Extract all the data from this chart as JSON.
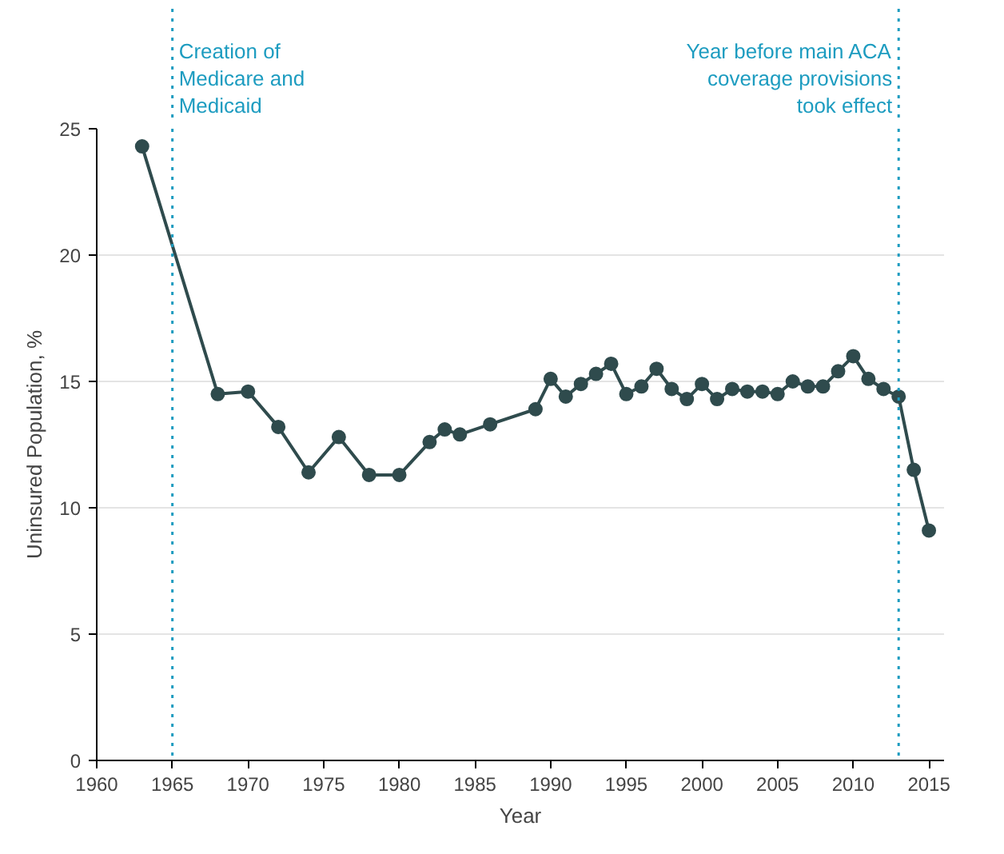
{
  "chart_data": {
    "type": "line",
    "xlabel": "Year",
    "ylabel": "Uninsured Population, %",
    "x": [
      1963,
      1968,
      1970,
      1972,
      1974,
      1976,
      1978,
      1980,
      1982,
      1983,
      1984,
      1986,
      1989,
      1990,
      1991,
      1992,
      1993,
      1994,
      1995,
      1996,
      1997,
      1998,
      1999,
      2000,
      2001,
      2002,
      2003,
      2004,
      2005,
      2006,
      2007,
      2008,
      2009,
      2010,
      2011,
      2012,
      2013,
      2014,
      2015
    ],
    "series": [
      {
        "color": "#2f4b4d",
        "values": [
          24.3,
          14.5,
          14.6,
          13.2,
          11.4,
          12.8,
          11.3,
          11.3,
          12.6,
          13.1,
          12.9,
          13.3,
          13.9,
          15.1,
          14.4,
          14.9,
          15.3,
          15.7,
          14.5,
          14.8,
          15.5,
          14.7,
          14.3,
          14.9,
          14.3,
          14.7,
          14.6,
          14.6,
          14.5,
          15.0,
          14.8,
          14.8,
          15.4,
          16.0,
          15.1,
          14.7,
          14.4,
          11.5,
          9.1
        ]
      }
    ],
    "xlim": [
      1960,
      2016
    ],
    "xticks": [
      1960,
      1965,
      1970,
      1975,
      1980,
      1985,
      1990,
      1995,
      2000,
      2005,
      2010,
      2015
    ],
    "ylim": [
      0,
      25
    ],
    "yticks": [
      0,
      5,
      10,
      15,
      20,
      25
    ],
    "grid": "y",
    "marker": "circle",
    "line_style": "solid",
    "ref_lines": [
      {
        "axis": "x",
        "value": 1965,
        "label": "Creation of\nMedicare and\nMedicaid",
        "color": "#1d9cc0",
        "line_style": "dotted"
      },
      {
        "axis": "x",
        "value": 2013,
        "label": "Year before main ACA\ncoverage provisions\ntook effect",
        "color": "#1d9cc0",
        "line_style": "dotted"
      }
    ]
  }
}
